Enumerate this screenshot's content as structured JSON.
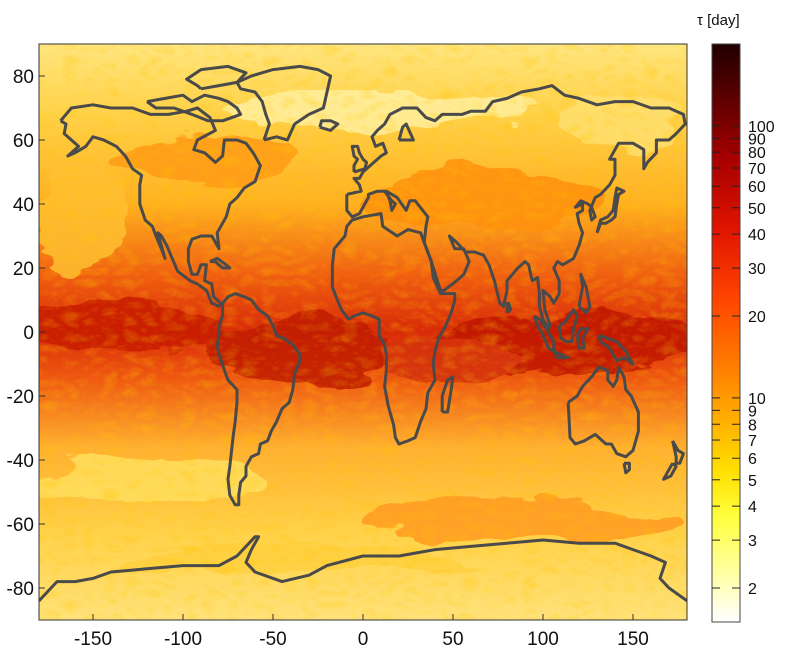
{
  "chart_data": {
    "type": "heatmap",
    "title": "",
    "xlabel": "",
    "ylabel": "",
    "xlim": [
      -180,
      180
    ],
    "ylim": [
      -90,
      90
    ],
    "x_ticks": [
      -150,
      -100,
      -50,
      0,
      50,
      100,
      150
    ],
    "y_ticks": [
      80,
      60,
      40,
      20,
      0,
      -20,
      -40,
      -60,
      -80
    ],
    "grid": false,
    "colorbar": {
      "label": "τ [day]",
      "scale": "log",
      "range": [
        1.5,
        200
      ],
      "ticks": [
        2,
        3,
        4,
        5,
        6,
        7,
        8,
        9,
        10,
        20,
        30,
        40,
        50,
        60,
        70,
        80,
        90,
        100
      ],
      "colors": [
        "#ffffff",
        "#ffffa0",
        "#ffff33",
        "#ffe000",
        "#ffb000",
        "#ff7a00",
        "#ff3c00",
        "#e01000",
        "#b00000",
        "#700000",
        "#2a0000"
      ]
    },
    "overlay": "coastlines",
    "coastline_color": "#4a4a4a"
  }
}
